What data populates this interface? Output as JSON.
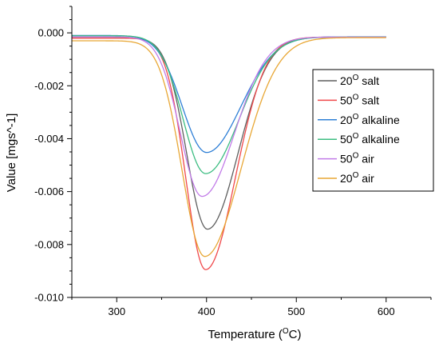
{
  "chart_data": {
    "type": "line",
    "title": "",
    "xlabel": {
      "prefix": "Temperature (",
      "sup": "O",
      "suffix": "C)"
    },
    "ylabel": "Value [mgs^-1]",
    "xlim": [
      250,
      650
    ],
    "ylim": [
      -0.01,
      0.001
    ],
    "x_ticks": [
      300,
      400,
      500,
      600
    ],
    "x_tick_labels": [
      "300",
      "400",
      "500",
      "600"
    ],
    "y_ticks": [
      -0.01,
      -0.008,
      -0.006,
      -0.004,
      -0.002,
      0.0
    ],
    "y_tick_labels": [
      "-0.010",
      "-0.008",
      "-0.006",
      "-0.004",
      "-0.002",
      "0.000"
    ],
    "grid": false,
    "legend_position": "right",
    "x_range": [
      250,
      600
    ],
    "series": [
      {
        "name": {
          "num": "20",
          "sup": "O",
          "label": " salt"
        },
        "color": "#5f5f5f",
        "peak_x": 401,
        "peak_y": -0.00742,
        "sigma_left": 23,
        "sigma_right": 34,
        "start_y": -0.00019,
        "end_y": -0.00016
      },
      {
        "name": {
          "num": "50",
          "sup": "O",
          "label": " salt"
        },
        "color": "#f0494b",
        "peak_x": 399,
        "peak_y": -0.00895,
        "sigma_left": 22,
        "sigma_right": 33,
        "start_y": -0.0002,
        "end_y": -0.00016
      },
      {
        "name": {
          "num": "20",
          "sup": "O",
          "label": " alkaline"
        },
        "color": "#2e7fd6",
        "peak_x": 400,
        "peak_y": -0.00452,
        "sigma_left": 27,
        "sigma_right": 38,
        "start_y": -0.0001,
        "end_y": -0.00015
      },
      {
        "name": {
          "num": "50",
          "sup": "O",
          "label": " alkaline"
        },
        "color": "#3dbd82",
        "peak_x": 399,
        "peak_y": -0.00532,
        "sigma_left": 25,
        "sigma_right": 37,
        "start_y": -0.00011,
        "end_y": -0.00016
      },
      {
        "name": {
          "num": "50",
          "sup": "O",
          "label": " air"
        },
        "color": "#c27ce8",
        "peak_x": 395,
        "peak_y": -0.00618,
        "sigma_left": 24,
        "sigma_right": 36,
        "start_y": -0.00015,
        "end_y": -0.00016
      },
      {
        "name": {
          "num": "20",
          "sup": "O",
          "label": " air"
        },
        "color": "#e8a735",
        "peak_x": 398,
        "peak_y": -0.00845,
        "sigma_left": 25,
        "sigma_right": 40,
        "start_y": -0.0003,
        "end_y": -0.00018
      }
    ]
  }
}
